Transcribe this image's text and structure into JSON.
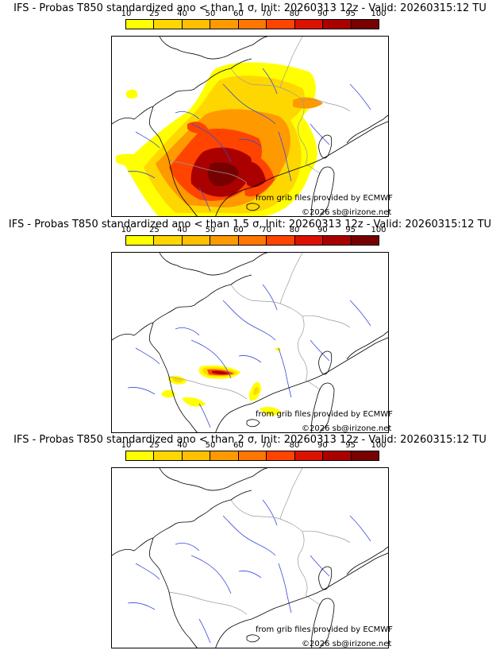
{
  "legend": {
    "ticks": [
      "10",
      "25",
      "40",
      "50",
      "60",
      "70",
      "80",
      "90",
      "95",
      "100"
    ],
    "colors": [
      "#ffff00",
      "#ffd700",
      "#ffc000",
      "#ff9900",
      "#ff7700",
      "#ff4400",
      "#dd1100",
      "#aa0000",
      "#770000"
    ]
  },
  "panels": [
    {
      "title": "IFS - Probas T850  standardized ano < than 1 σ, Init: 20260313 12z - Valid: 20260315:12 TU",
      "source": "from grib files provided by ECMWF",
      "copyright": "©2026 sb@irizone.net",
      "coverage": "extensive"
    },
    {
      "title": "IFS - Probas T850  standardized ano < than 1.5 σ, Init: 20260313 12z - Valid: 20260315:12 TU",
      "source": "from grib files provided by ECMWF",
      "copyright": "©2026 sb@irizone.net",
      "coverage": "small"
    },
    {
      "title": "IFS - Probas T850  standardized ano < than 2 σ, Init: 20260313 12z - Valid: 20260315:12 TU",
      "source": "from grib files provided by ECMWF",
      "copyright": "©2026 sb@irizone.net",
      "coverage": "none"
    }
  ]
}
